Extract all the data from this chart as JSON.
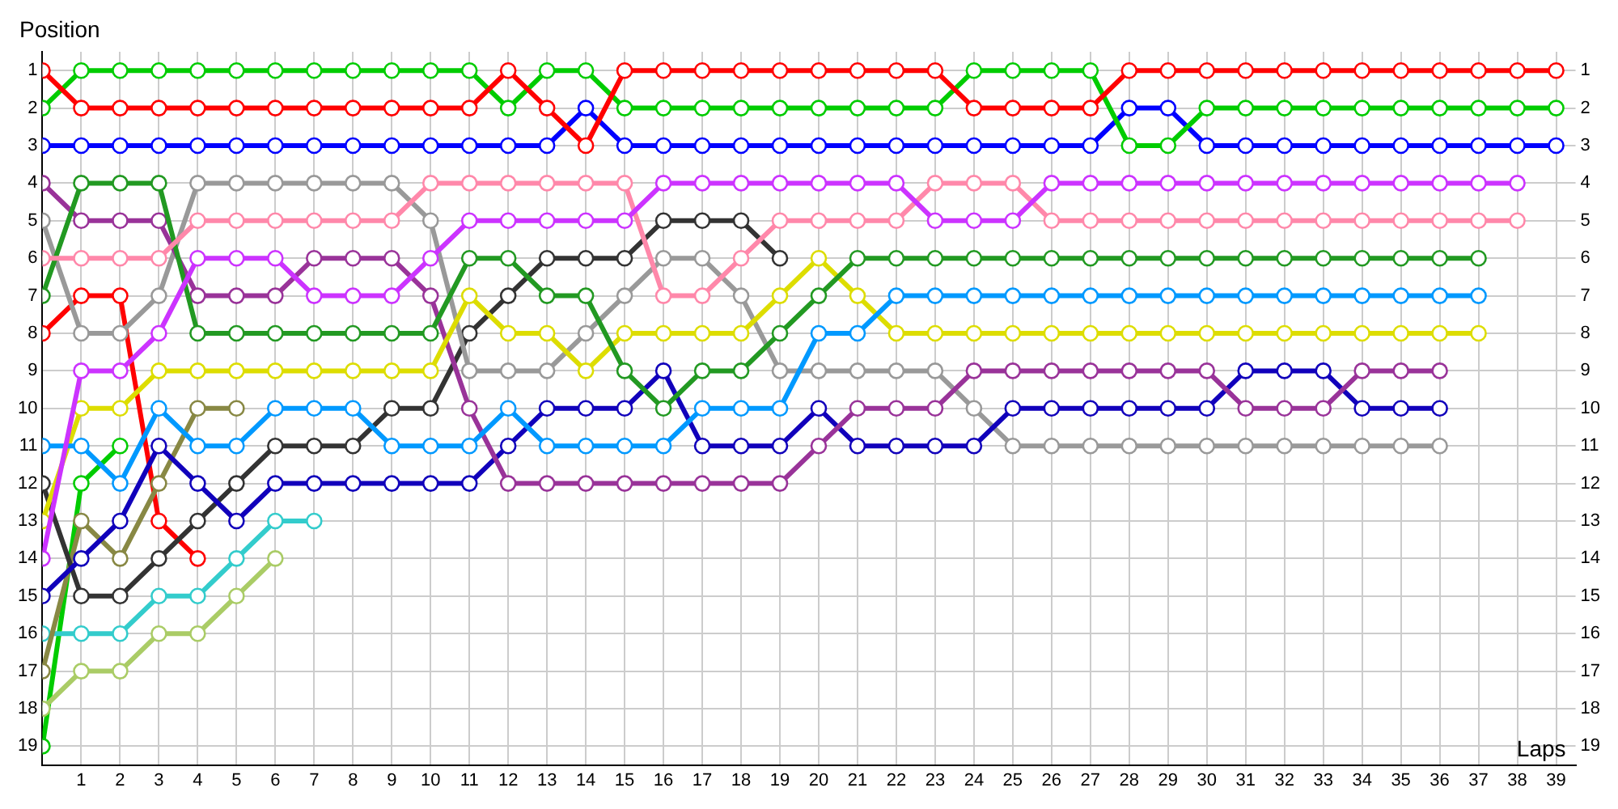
{
  "chart_data": {
    "type": "line",
    "xlabel": "Laps",
    "ylabel": "Position",
    "x": [
      0,
      1,
      2,
      3,
      4,
      5,
      6,
      7,
      8,
      9,
      10,
      11,
      12,
      13,
      14,
      15,
      16,
      17,
      18,
      19,
      20,
      21,
      22,
      23,
      24,
      25,
      26,
      27,
      28,
      29,
      30,
      31,
      32,
      33,
      34,
      35,
      36,
      37,
      38,
      39
    ],
    "xlim": [
      0,
      39.5
    ],
    "xticks": [
      1,
      2,
      3,
      4,
      5,
      6,
      7,
      8,
      9,
      10,
      11,
      12,
      13,
      14,
      15,
      16,
      17,
      18,
      19,
      20,
      21,
      22,
      23,
      24,
      25,
      26,
      27,
      28,
      29,
      30,
      31,
      32,
      33,
      34,
      35,
      36,
      37,
      38,
      39
    ],
    "ylim": [
      19.5,
      0.5
    ],
    "yticks": [
      1,
      2,
      3,
      4,
      5,
      6,
      7,
      8,
      9,
      10,
      11,
      12,
      13,
      14,
      15,
      16,
      17,
      18,
      19
    ],
    "y2lim": [
      19.5,
      0.5
    ],
    "y2ticks": [
      1,
      2,
      3,
      4,
      5,
      6,
      7,
      8,
      9,
      10,
      11,
      12,
      13,
      14,
      15,
      16,
      17,
      18,
      19
    ],
    "grid": true,
    "legend": false,
    "marker": "circle",
    "line_style": "solid",
    "series": [
      {
        "color": "#ff0000",
        "values": [
          1,
          2,
          2,
          2,
          2,
          2,
          2,
          2,
          2,
          2,
          2,
          2,
          1,
          2,
          3,
          1,
          1,
          1,
          1,
          1,
          1,
          1,
          1,
          1,
          2,
          2,
          2,
          2,
          1,
          1,
          1,
          1,
          1,
          1,
          1,
          1,
          1,
          1,
          1,
          1
        ]
      },
      {
        "color": "#00cc00",
        "values": [
          2,
          1,
          1,
          1,
          1,
          1,
          1,
          1,
          1,
          1,
          1,
          1,
          2,
          1,
          1,
          2,
          2,
          2,
          2,
          2,
          2,
          2,
          2,
          2,
          1,
          1,
          1,
          1,
          3,
          3,
          2,
          2,
          2,
          2,
          2,
          2,
          2,
          2,
          2,
          2
        ]
      },
      {
        "color": "#0000ff",
        "values": [
          3,
          3,
          3,
          3,
          3,
          3,
          3,
          3,
          3,
          3,
          3,
          3,
          3,
          3,
          2,
          3,
          3,
          3,
          3,
          3,
          3,
          3,
          3,
          3,
          3,
          3,
          3,
          3,
          2,
          2,
          3,
          3,
          3,
          3,
          3,
          3,
          3,
          3,
          3,
          3
        ]
      },
      {
        "color": "#cc33ff",
        "values": [
          14,
          9,
          9,
          8,
          6,
          6,
          6,
          7,
          7,
          7,
          6,
          5,
          5,
          5,
          5,
          5,
          4,
          4,
          4,
          4,
          4,
          4,
          4,
          5,
          5,
          5,
          4,
          4,
          4,
          4,
          4,
          4,
          4,
          4,
          4,
          4,
          4,
          4,
          4,
          null
        ]
      },
      {
        "color": "#ff88aa",
        "values": [
          6,
          6,
          6,
          6,
          5,
          5,
          5,
          5,
          5,
          5,
          4,
          4,
          4,
          4,
          4,
          4,
          7,
          7,
          6,
          5,
          5,
          5,
          5,
          4,
          4,
          4,
          5,
          5,
          5,
          5,
          5,
          5,
          5,
          5,
          5,
          5,
          5,
          5,
          5,
          null
        ]
      },
      {
        "color": "#229922",
        "values": [
          7,
          4,
          4,
          4,
          8,
          8,
          8,
          8,
          8,
          8,
          8,
          6,
          6,
          7,
          7,
          9,
          10,
          9,
          9,
          8,
          7,
          6,
          6,
          6,
          6,
          6,
          6,
          6,
          6,
          6,
          6,
          6,
          6,
          6,
          6,
          6,
          6,
          6,
          null,
          null
        ]
      },
      {
        "color": "#0099ff",
        "values": [
          11,
          11,
          12,
          10,
          11,
          11,
          10,
          10,
          10,
          11,
          11,
          11,
          10,
          11,
          11,
          11,
          11,
          10,
          10,
          10,
          8,
          8,
          7,
          7,
          7,
          7,
          7,
          7,
          7,
          7,
          7,
          7,
          7,
          7,
          7,
          7,
          7,
          7,
          null,
          null
        ]
      },
      {
        "color": "#dddd00",
        "values": [
          13,
          10,
          10,
          9,
          9,
          9,
          9,
          9,
          9,
          9,
          9,
          7,
          8,
          8,
          9,
          8,
          8,
          8,
          8,
          7,
          6,
          7,
          8,
          8,
          8,
          8,
          8,
          8,
          8,
          8,
          8,
          8,
          8,
          8,
          8,
          8,
          8,
          8,
          null,
          null
        ]
      },
      {
        "color": "#993399",
        "values": [
          4,
          5,
          5,
          5,
          7,
          7,
          7,
          6,
          6,
          6,
          7,
          10,
          12,
          12,
          12,
          12,
          12,
          12,
          12,
          12,
          11,
          10,
          10,
          10,
          9,
          9,
          9,
          9,
          9,
          9,
          9,
          10,
          10,
          10,
          9,
          9,
          9,
          null,
          null,
          null
        ]
      },
      {
        "color": "#1100bb",
        "values": [
          15,
          14,
          13,
          11,
          12,
          13,
          12,
          12,
          12,
          12,
          12,
          12,
          11,
          10,
          10,
          10,
          9,
          11,
          11,
          11,
          10,
          11,
          11,
          11,
          11,
          10,
          10,
          10,
          10,
          10,
          10,
          9,
          9,
          9,
          10,
          10,
          10,
          null,
          null,
          null
        ]
      },
      {
        "color": "#999999",
        "values": [
          5,
          8,
          8,
          7,
          4,
          4,
          4,
          4,
          4,
          4,
          5,
          9,
          9,
          9,
          8,
          7,
          6,
          6,
          7,
          9,
          9,
          9,
          9,
          9,
          10,
          11,
          11,
          11,
          11,
          11,
          11,
          11,
          11,
          11,
          11,
          11,
          11,
          null,
          null,
          null
        ]
      },
      {
        "color": "#333333",
        "values": [
          12,
          15,
          15,
          14,
          13,
          12,
          11,
          11,
          11,
          10,
          10,
          8,
          7,
          6,
          6,
          6,
          5,
          5,
          5,
          6,
          null,
          null,
          null,
          null,
          null,
          null,
          null,
          null,
          null,
          null,
          null,
          null,
          null,
          null,
          null,
          null,
          null,
          null,
          null,
          null
        ]
      },
      {
        "color": "#888844",
        "values": [
          17,
          13,
          14,
          12,
          10,
          10,
          null,
          null,
          null,
          null,
          null,
          null,
          null,
          null,
          null,
          null,
          null,
          null,
          null,
          null,
          null,
          null,
          null,
          null,
          null,
          null,
          null,
          null,
          null,
          null,
          null,
          null,
          null,
          null,
          null,
          null,
          null,
          null,
          null,
          null
        ]
      },
      {
        "color": "#33cccc",
        "values": [
          16,
          16,
          16,
          15,
          15,
          14,
          13,
          13,
          null,
          null,
          null,
          null,
          null,
          null,
          null,
          null,
          null,
          null,
          null,
          null,
          null,
          null,
          null,
          null,
          null,
          null,
          null,
          null,
          null,
          null,
          null,
          null,
          null,
          null,
          null,
          null,
          null,
          null,
          null,
          null
        ]
      },
      {
        "color": "#aacc66",
        "values": [
          18,
          17,
          17,
          16,
          16,
          15,
          14,
          null,
          null,
          null,
          null,
          null,
          null,
          null,
          null,
          null,
          null,
          null,
          null,
          null,
          null,
          null,
          null,
          null,
          null,
          null,
          null,
          null,
          null,
          null,
          null,
          null,
          null,
          null,
          null,
          null,
          null,
          null,
          null,
          null
        ]
      },
      {
        "color": "#ff0000",
        "values": [
          8,
          7,
          7,
          13,
          14,
          null,
          null,
          null,
          null,
          null,
          null,
          null,
          null,
          null,
          null,
          null,
          null,
          null,
          null,
          null,
          null,
          null,
          null,
          null,
          null,
          null,
          null,
          null,
          null,
          null,
          null,
          null,
          null,
          null,
          null,
          null,
          null,
          null,
          null,
          null
        ]
      },
      {
        "color": "#00cc00",
        "values": [
          19,
          12,
          11,
          null,
          null,
          null,
          null,
          null,
          null,
          null,
          null,
          null,
          null,
          null,
          null,
          null,
          null,
          null,
          null,
          null,
          null,
          null,
          null,
          null,
          null,
          null,
          null,
          null,
          null,
          null,
          null,
          null,
          null,
          null,
          null,
          null,
          null,
          null,
          null,
          null
        ]
      }
    ]
  }
}
